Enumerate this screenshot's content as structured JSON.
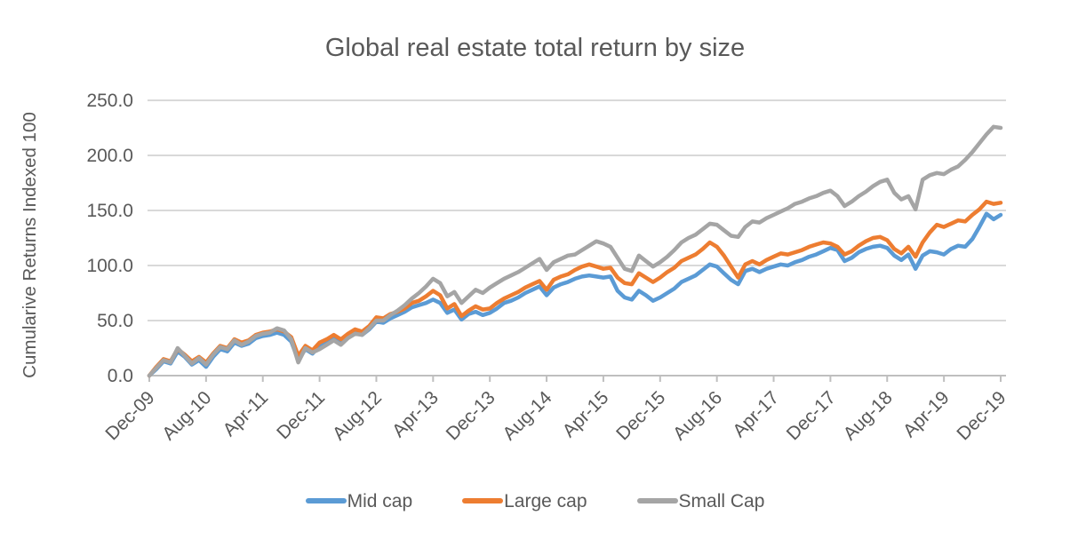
{
  "chart_data": {
    "type": "line",
    "title": "Global real estate total return by size",
    "ylabel": "Cumularive Returns Indexed 100",
    "xlabel": "",
    "x_start": "Dec-09",
    "x_interval": "monthly",
    "n_points": 121,
    "x_tick_labels": [
      "Dec-09",
      "Aug-10",
      "Apr-11",
      "Dec-11",
      "Aug-12",
      "Apr-13",
      "Dec-13",
      "Aug-14",
      "Apr-15",
      "Dec-15",
      "Aug-16",
      "Apr-17",
      "Dec-17",
      "Aug-18",
      "Apr-19",
      "Dec-19"
    ],
    "x_tick_month_index": [
      0,
      8,
      16,
      24,
      32,
      40,
      48,
      56,
      64,
      72,
      80,
      88,
      96,
      104,
      112,
      120
    ],
    "y_ticks": [
      0,
      50,
      100,
      150,
      200,
      250
    ],
    "y_tick_labels": [
      "0.0",
      "50.0",
      "100.0",
      "150.0",
      "200.0",
      "250.0"
    ],
    "ylim": [
      0,
      250
    ],
    "grid": "horizontal",
    "legend_position": "bottom",
    "series": [
      {
        "name": "Mid cap",
        "color": "#5B9BD5",
        "values": [
          0,
          6,
          13,
          11,
          22,
          17,
          10,
          14,
          8,
          17,
          24,
          22,
          30,
          27,
          29,
          34,
          36,
          37,
          39,
          37,
          31,
          14,
          24,
          20,
          27,
          30,
          34,
          30,
          35,
          39,
          37,
          42,
          49,
          48,
          52,
          55,
          58,
          62,
          64,
          66,
          69,
          66,
          57,
          60,
          51,
          56,
          58,
          55,
          57,
          61,
          66,
          68,
          71,
          75,
          78,
          81,
          73,
          80,
          83,
          85,
          88,
          90,
          91,
          90,
          89,
          90,
          77,
          71,
          69,
          77,
          73,
          68,
          71,
          75,
          79,
          85,
          88,
          91,
          96,
          101,
          99,
          93,
          87,
          83,
          95,
          97,
          94,
          97,
          99,
          101,
          100,
          103,
          105,
          108,
          110,
          113,
          116,
          114,
          104,
          107,
          112,
          115,
          117,
          118,
          116,
          109,
          105,
          110,
          97,
          109,
          113,
          112,
          110,
          115,
          118,
          117,
          124,
          135,
          147,
          142,
          146
        ]
      },
      {
        "name": "Large cap",
        "color": "#ED7D31",
        "values": [
          0,
          8,
          15,
          13,
          24,
          19,
          13,
          17,
          12,
          20,
          27,
          25,
          33,
          30,
          32,
          37,
          39,
          40,
          42,
          40,
          35,
          18,
          27,
          23,
          30,
          33,
          37,
          33,
          38,
          42,
          40,
          45,
          53,
          52,
          56,
          58,
          61,
          66,
          68,
          72,
          77,
          73,
          61,
          65,
          54,
          59,
          63,
          60,
          61,
          66,
          70,
          73,
          76,
          80,
          83,
          86,
          78,
          87,
          90,
          92,
          96,
          99,
          101,
          99,
          97,
          98,
          89,
          84,
          83,
          93,
          89,
          85,
          89,
          94,
          98,
          104,
          107,
          110,
          115,
          121,
          117,
          109,
          99,
          89,
          101,
          104,
          101,
          105,
          108,
          111,
          110,
          112,
          114,
          117,
          119,
          121,
          120,
          117,
          110,
          113,
          118,
          122,
          125,
          126,
          123,
          115,
          111,
          117,
          108,
          121,
          130,
          137,
          135,
          138,
          141,
          140,
          146,
          151,
          158,
          156,
          157
        ]
      },
      {
        "name": "Small Cap",
        "color": "#A5A5A5",
        "values": [
          0,
          7,
          14,
          12,
          25,
          18,
          11,
          16,
          10,
          19,
          26,
          24,
          32,
          28,
          31,
          36,
          38,
          39,
          43,
          41,
          33,
          12,
          25,
          21,
          24,
          28,
          32,
          28,
          34,
          38,
          37,
          43,
          50,
          50,
          55,
          59,
          64,
          70,
          75,
          81,
          88,
          84,
          72,
          76,
          66,
          72,
          78,
          75,
          80,
          84,
          88,
          91,
          94,
          98,
          102,
          106,
          96,
          103,
          106,
          109,
          110,
          114,
          118,
          122,
          120,
          117,
          107,
          97,
          95,
          109,
          104,
          99,
          103,
          108,
          114,
          121,
          125,
          128,
          133,
          138,
          137,
          132,
          127,
          126,
          135,
          140,
          139,
          143,
          146,
          149,
          152,
          156,
          158,
          161,
          163,
          166,
          168,
          163,
          154,
          158,
          163,
          167,
          172,
          176,
          178,
          166,
          160,
          163,
          151,
          178,
          182,
          184,
          183,
          187,
          190,
          196,
          203,
          211,
          219,
          226,
          225
        ]
      }
    ]
  },
  "colors": {
    "title_text": "#595959",
    "axis_text": "#595959",
    "gridline": "#D9D9D9",
    "axis_line": "#BFBFBF",
    "background": "#FFFFFF"
  }
}
